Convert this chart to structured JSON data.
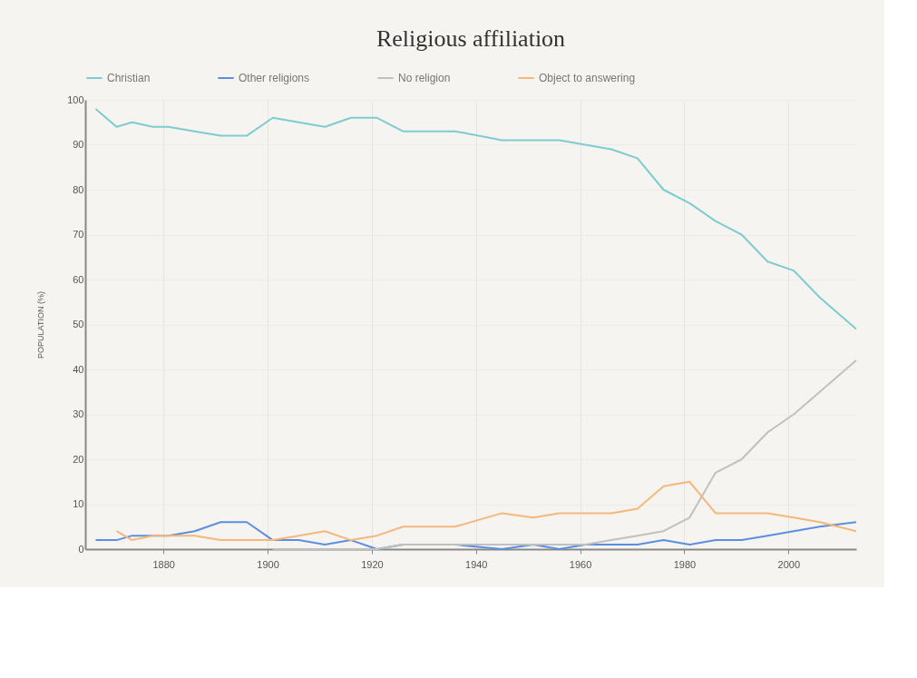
{
  "chart_data": {
    "type": "line",
    "title": "Religious affiliation",
    "ylabel": "POPULATION (%)",
    "x": [
      1867,
      1871,
      1874,
      1878,
      1881,
      1886,
      1891,
      1896,
      1901,
      1906,
      1911,
      1916,
      1921,
      1926,
      1936,
      1945,
      1951,
      1956,
      1961,
      1966,
      1971,
      1976,
      1981,
      1986,
      1991,
      1996,
      2001,
      2006,
      2013
    ],
    "series": [
      {
        "name": "Christian",
        "color": "#7ecbd0",
        "values": [
          98,
          94,
          95,
          94,
          94,
          93,
          92,
          92,
          96,
          95,
          94,
          96,
          96,
          93,
          93,
          91,
          91,
          91,
          90,
          89,
          87,
          80,
          77,
          73,
          70,
          64,
          62,
          56,
          49
        ]
      },
      {
        "name": "Other religions",
        "color": "#5b8ee0",
        "values": [
          2,
          2,
          3,
          3,
          3,
          4,
          6,
          6,
          2,
          2,
          1,
          2,
          0,
          1,
          1,
          0,
          1,
          0,
          1,
          1,
          1,
          2,
          1,
          2,
          2,
          3,
          4,
          5,
          6
        ]
      },
      {
        "name": "No religion",
        "color": "#c0c0c0",
        "values": [
          null,
          null,
          null,
          null,
          null,
          null,
          null,
          null,
          0,
          0,
          0,
          0,
          0,
          1,
          1,
          1,
          1,
          1,
          1,
          2,
          3,
          4,
          7,
          17,
          20,
          26,
          30,
          35,
          42
        ]
      },
      {
        "name": "Object to answering",
        "color": "#f5b77a",
        "values": [
          null,
          4,
          2,
          3,
          3,
          3,
          2,
          2,
          2,
          3,
          4,
          2,
          3,
          5,
          5,
          8,
          7,
          8,
          8,
          8,
          9,
          14,
          15,
          8,
          8,
          8,
          7,
          6,
          4
        ]
      }
    ],
    "xlim": [
      1865,
      2013
    ],
    "xticks": [
      1880,
      1900,
      1920,
      1940,
      1960,
      1980,
      2000
    ],
    "ylim": [
      0,
      100
    ],
    "yticks": [
      0,
      10,
      20,
      30,
      40,
      50,
      60,
      70,
      80,
      90,
      100
    ],
    "grid": true,
    "legend": "top",
    "marker": "none",
    "line_style": "solid"
  }
}
